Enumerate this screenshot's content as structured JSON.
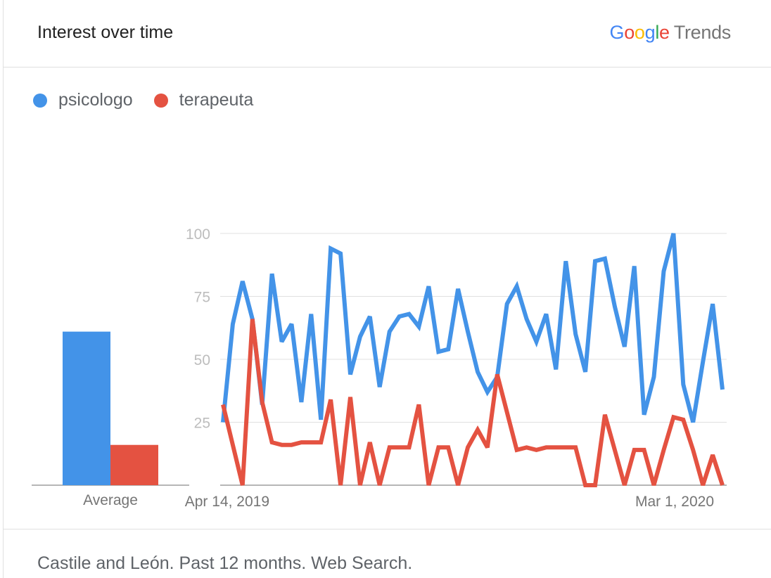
{
  "header": {
    "title": "Interest over time",
    "brand_google_letters": [
      {
        "ch": "G",
        "color": "#4285f4"
      },
      {
        "ch": "o",
        "color": "#ea4335"
      },
      {
        "ch": "o",
        "color": "#fbbc05"
      },
      {
        "ch": "g",
        "color": "#4285f4"
      },
      {
        "ch": "l",
        "color": "#34a853"
      },
      {
        "ch": "e",
        "color": "#ea4335"
      }
    ],
    "brand_trends": "Trends"
  },
  "legend": [
    {
      "label": "psicologo",
      "color": "#4393e8"
    },
    {
      "label": "terapeuta",
      "color": "#e45241"
    }
  ],
  "footer": {
    "text": "Castile and León. Past 12 months. Web Search."
  },
  "chart_data": {
    "type": "line",
    "title": "",
    "xlabel": "",
    "ylabel": "",
    "ylim": [
      0,
      100
    ],
    "y_ticks": [
      "100",
      "75",
      "50",
      "25"
    ],
    "y_tick_values": [
      100,
      75,
      50,
      25
    ],
    "x_tick_labels": [
      {
        "label": "Apr 14, 2019",
        "index": 0
      },
      {
        "label": "Mar 1, 2020",
        "index": 50
      }
    ],
    "grid": true,
    "average_bar": {
      "label": "Average",
      "values": [
        61,
        16
      ]
    },
    "series": [
      {
        "name": "psicologo",
        "color": "#4393e8",
        "values": [
          25,
          64,
          81,
          66,
          32,
          84,
          57,
          64,
          33,
          68,
          26,
          94,
          92,
          44,
          59,
          67,
          39,
          61,
          67,
          68,
          63,
          79,
          53,
          54,
          78,
          61,
          45,
          37,
          43,
          72,
          79,
          66,
          57,
          68,
          46,
          89,
          60,
          45,
          89,
          90,
          71,
          55,
          87,
          28,
          43,
          85,
          100,
          40,
          25,
          49,
          72,
          38
        ]
      },
      {
        "name": "terapeuta",
        "color": "#e45241",
        "values": [
          32,
          16,
          0,
          66,
          33,
          17,
          16,
          16,
          17,
          17,
          17,
          34,
          0,
          35,
          0,
          17,
          0,
          15,
          15,
          15,
          32,
          0,
          15,
          15,
          0,
          15,
          22,
          15,
          44,
          29,
          14,
          15,
          14,
          15,
          15,
          15,
          15,
          0,
          0,
          28,
          14,
          0,
          14,
          14,
          0,
          14,
          27,
          26,
          14,
          0,
          12,
          0
        ]
      }
    ]
  }
}
